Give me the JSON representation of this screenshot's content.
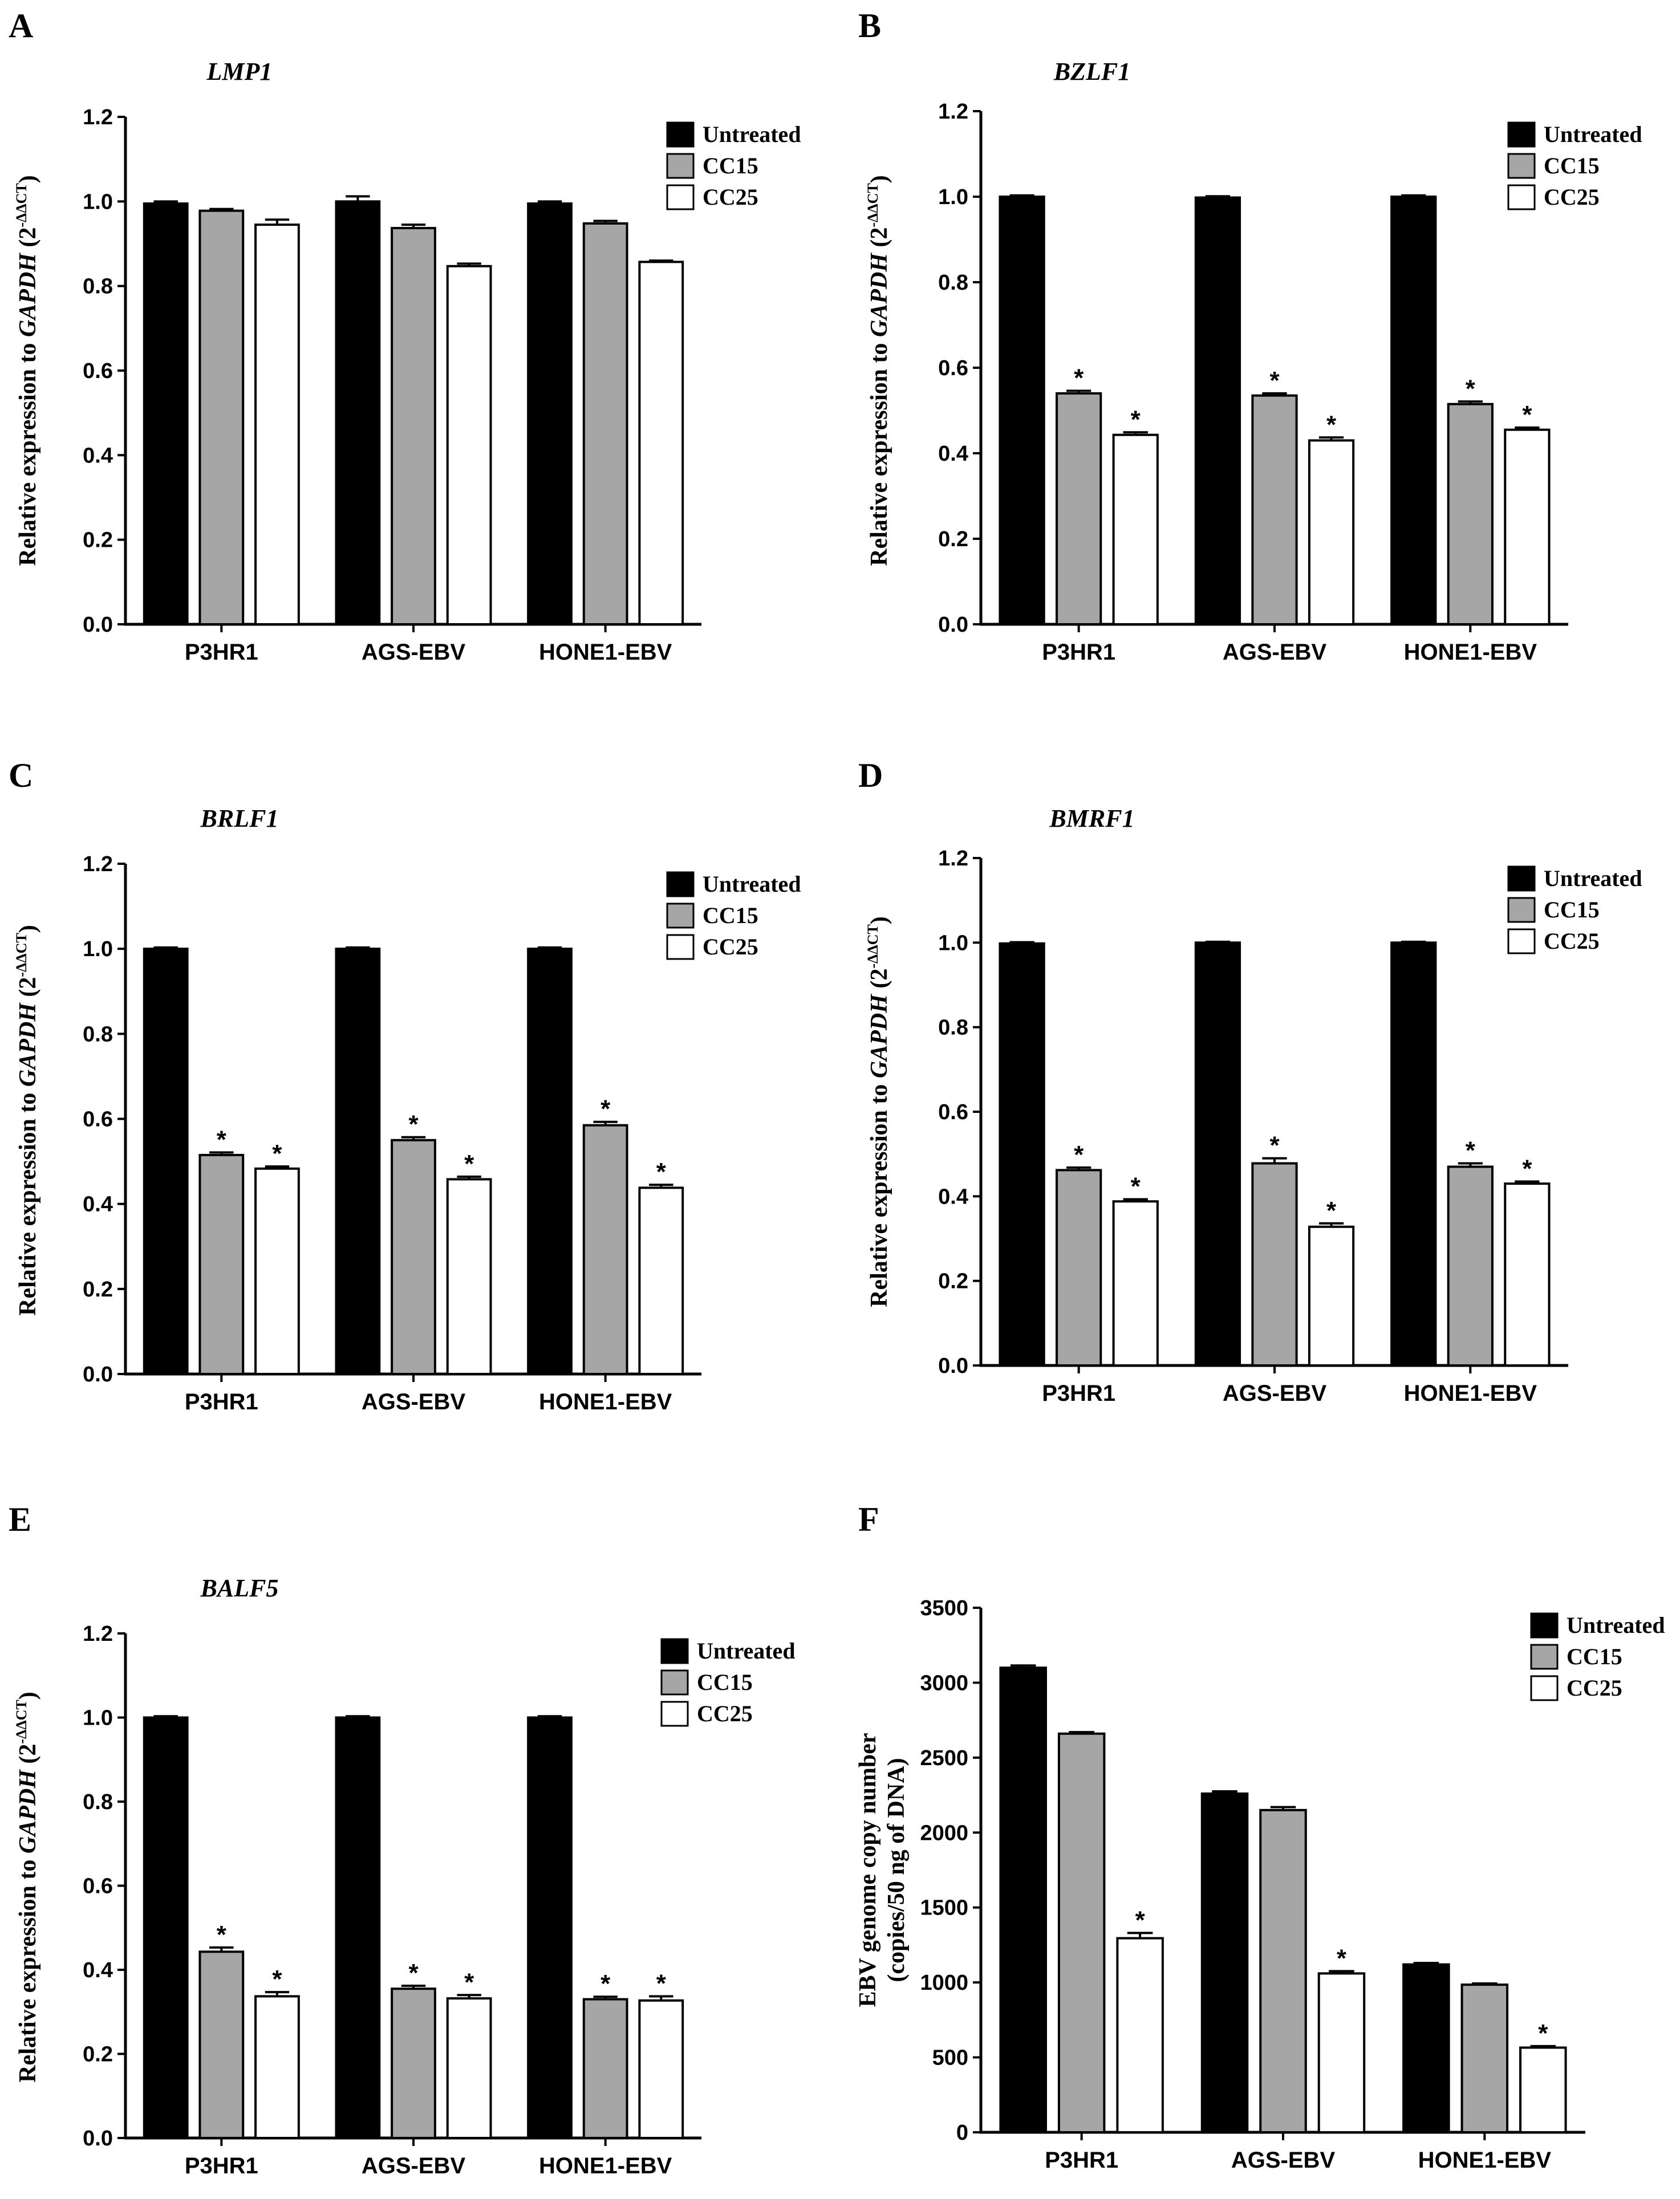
{
  "chart_data": [
    {
      "panel": "A",
      "type": "bar",
      "title": "LMP1",
      "ylabel": "Relative expression to GAPDH (2-ΔΔCT)",
      "ylabel_parts": [
        "Relative expression to ",
        "GAPDH",
        " (2",
        "-ΔΔCT",
        ")"
      ],
      "ylim": [
        0,
        1.2
      ],
      "yticks": [
        "0.0",
        "0.2",
        "0.4",
        "0.6",
        "0.8",
        "1.0",
        "1.2"
      ],
      "categories": [
        "P3HR1",
        "AGS-EBV",
        "HONE1-EBV"
      ],
      "series": [
        {
          "name": "Untreated",
          "values": [
            0.995,
            1.0,
            0.995
          ],
          "errors": [
            0.005,
            0.012,
            0.005
          ],
          "sig": [
            false,
            false,
            false
          ]
        },
        {
          "name": "CC15",
          "values": [
            0.978,
            0.937,
            0.948
          ],
          "errors": [
            0.004,
            0.008,
            0.006
          ],
          "sig": [
            false,
            false,
            false
          ]
        },
        {
          "name": "CC25",
          "values": [
            0.945,
            0.847,
            0.857
          ],
          "errors": [
            0.012,
            0.006,
            0.003
          ],
          "sig": [
            false,
            false,
            false
          ]
        }
      ]
    },
    {
      "panel": "B",
      "type": "bar",
      "title": "BZLF1",
      "ylabel": "Relative expression to GAPDH (2-ΔΔCT)",
      "ylabel_parts": [
        "Relative expression to ",
        "GAPDH",
        " (2",
        "-ΔΔCT",
        ")"
      ],
      "ylim": [
        0,
        1.2
      ],
      "yticks": [
        "0.0",
        "0.2",
        "0.4",
        "0.6",
        "0.8",
        "1.0",
        "1.2"
      ],
      "categories": [
        "P3HR1",
        "AGS-EBV",
        "HONE1-EBV"
      ],
      "series": [
        {
          "name": "Untreated",
          "values": [
            1.0,
            0.998,
            1.0
          ],
          "errors": [
            0.003,
            0.003,
            0.003
          ],
          "sig": [
            false,
            false,
            false
          ]
        },
        {
          "name": "CC15",
          "values": [
            0.54,
            0.535,
            0.515
          ],
          "errors": [
            0.006,
            0.005,
            0.006
          ],
          "sig": [
            true,
            true,
            true
          ]
        },
        {
          "name": "CC25",
          "values": [
            0.443,
            0.43,
            0.455
          ],
          "errors": [
            0.006,
            0.007,
            0.005
          ],
          "sig": [
            true,
            true,
            true
          ]
        }
      ]
    },
    {
      "panel": "C",
      "type": "bar",
      "title": "BRLF1",
      "ylabel": "Relative expression to GAPDH (2-ΔΔCT)",
      "ylabel_parts": [
        "Relative expression to ",
        "GAPDH",
        " (2",
        "-ΔΔCT",
        ")"
      ],
      "ylim": [
        0,
        1.2
      ],
      "yticks": [
        "0.0",
        "0.2",
        "0.4",
        "0.6",
        "0.8",
        "1.0",
        "1.2"
      ],
      "categories": [
        "P3HR1",
        "AGS-EBV",
        "HONE1-EBV"
      ],
      "series": [
        {
          "name": "Untreated",
          "values": [
            1.0,
            1.0,
            1.0
          ],
          "errors": [
            0.003,
            0.003,
            0.003
          ],
          "sig": [
            false,
            false,
            false
          ]
        },
        {
          "name": "CC15",
          "values": [
            0.515,
            0.55,
            0.585
          ],
          "errors": [
            0.006,
            0.007,
            0.008
          ],
          "sig": [
            true,
            true,
            true
          ]
        },
        {
          "name": "CC25",
          "values": [
            0.483,
            0.458,
            0.438
          ],
          "errors": [
            0.005,
            0.006,
            0.007
          ],
          "sig": [
            true,
            true,
            true
          ]
        }
      ]
    },
    {
      "panel": "D",
      "type": "bar",
      "title": "BMRF1",
      "ylabel": "Relative expression to GAPDH (2-ΔΔCT)",
      "ylabel_parts": [
        "Relative expression to ",
        "GAPDH",
        " (2",
        "-ΔΔCT",
        ")"
      ],
      "ylim": [
        0,
        1.2
      ],
      "yticks": [
        "0.0",
        "0.2",
        "0.4",
        "0.6",
        "0.8",
        "1.0",
        "1.2"
      ],
      "categories": [
        "P3HR1",
        "AGS-EBV",
        "HONE1-EBV"
      ],
      "series": [
        {
          "name": "Untreated",
          "values": [
            0.998,
            1.0,
            1.0
          ],
          "errors": [
            0.003,
            0.002,
            0.002
          ],
          "sig": [
            false,
            false,
            false
          ]
        },
        {
          "name": "CC15",
          "values": [
            0.462,
            0.478,
            0.47
          ],
          "errors": [
            0.006,
            0.012,
            0.008
          ],
          "sig": [
            true,
            true,
            true
          ]
        },
        {
          "name": "CC25",
          "values": [
            0.388,
            0.328,
            0.43
          ],
          "errors": [
            0.005,
            0.008,
            0.005
          ],
          "sig": [
            true,
            true,
            true
          ]
        }
      ]
    },
    {
      "panel": "E",
      "type": "bar",
      "title": "BALF5",
      "ylabel": "Relative expression to GAPDH (2-ΔΔCT)",
      "ylabel_parts": [
        "Relative expression to ",
        "GAPDH",
        " (2",
        "-ΔΔCT",
        ")"
      ],
      "ylim": [
        0,
        1.2
      ],
      "yticks": [
        "0.0",
        "0.2",
        "0.4",
        "0.6",
        "0.8",
        "1.0",
        "1.2"
      ],
      "categories": [
        "P3HR1",
        "AGS-EBV",
        "HONE1-EBV"
      ],
      "series": [
        {
          "name": "Untreated",
          "values": [
            1.0,
            1.0,
            1.0
          ],
          "errors": [
            0.003,
            0.003,
            0.003
          ],
          "sig": [
            false,
            false,
            false
          ]
        },
        {
          "name": "CC15",
          "values": [
            0.443,
            0.355,
            0.33
          ],
          "errors": [
            0.01,
            0.007,
            0.006
          ],
          "sig": [
            true,
            true,
            true
          ]
        },
        {
          "name": "CC25",
          "values": [
            0.337,
            0.332,
            0.327
          ],
          "errors": [
            0.01,
            0.008,
            0.01
          ],
          "sig": [
            true,
            true,
            true
          ]
        }
      ]
    },
    {
      "panel": "F",
      "type": "bar",
      "title": "",
      "ylabel": "EBV genome copy number (copies/50 ng of DNA)",
      "ylabel_lines": [
        "EBV genome copy number",
        "(copies/50 ng of DNA)"
      ],
      "ylim": [
        0,
        3500
      ],
      "yticks": [
        "0",
        "500",
        "1000",
        "1500",
        "2000",
        "2500",
        "3000",
        "3500"
      ],
      "categories": [
        "P3HR1",
        "AGS-EBV",
        "HONE1-EBV"
      ],
      "series": [
        {
          "name": "Untreated",
          "values": [
            3100,
            2260,
            1120
          ],
          "errors": [
            15,
            15,
            10
          ],
          "sig": [
            false,
            false,
            false
          ]
        },
        {
          "name": "CC15",
          "values": [
            2660,
            2150,
            985
          ],
          "errors": [
            10,
            20,
            8
          ],
          "sig": [
            false,
            false,
            false
          ]
        },
        {
          "name": "CC25",
          "values": [
            1295,
            1060,
            565
          ],
          "errors": [
            35,
            15,
            10
          ],
          "sig": [
            true,
            true,
            true
          ]
        }
      ]
    }
  ],
  "colors": {
    "Untreated": "#000000",
    "CC15": "#a6a6a6",
    "CC25": "#ffffff",
    "axis": "#000000"
  },
  "significance_marker": "*"
}
